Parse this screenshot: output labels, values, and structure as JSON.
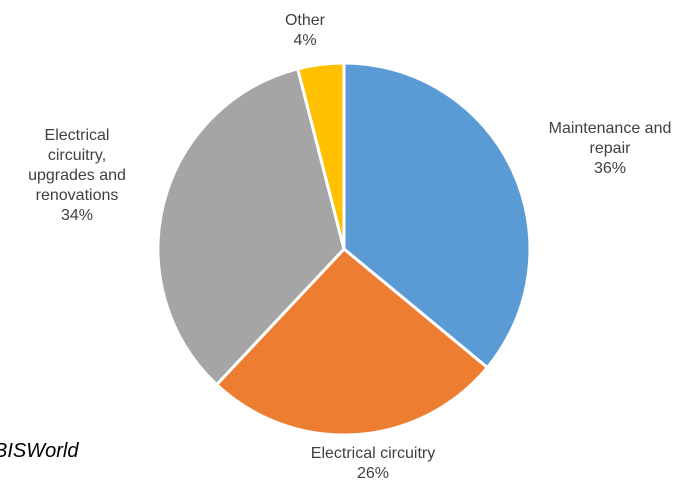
{
  "chart_data": {
    "type": "pie",
    "title": "",
    "slices": [
      {
        "label": "Maintenance and repair",
        "lines": [
          "Maintenance and",
          "repair"
        ],
        "value": 36,
        "value_label": "36%",
        "color": "#5b9bd5"
      },
      {
        "label": "Electrical circuitry",
        "lines": [
          "Electrical circuitry"
        ],
        "value": 26,
        "value_label": "26%",
        "color": "#ed7d31"
      },
      {
        "label": "Electrical circuitry, upgrades and renovations",
        "lines": [
          "Electrical",
          "circuitry,",
          "upgrades and",
          "renovations"
        ],
        "value": 34,
        "value_label": "34%",
        "color": "#a5a5a5"
      },
      {
        "label": "Other",
        "lines": [
          "Other"
        ],
        "value": 4,
        "value_label": "4%",
        "color": "#ffc000"
      }
    ],
    "start": "12 o'clock",
    "direction": "clockwise",
    "legend": "none"
  },
  "source": {
    "text": "BISWorld"
  }
}
